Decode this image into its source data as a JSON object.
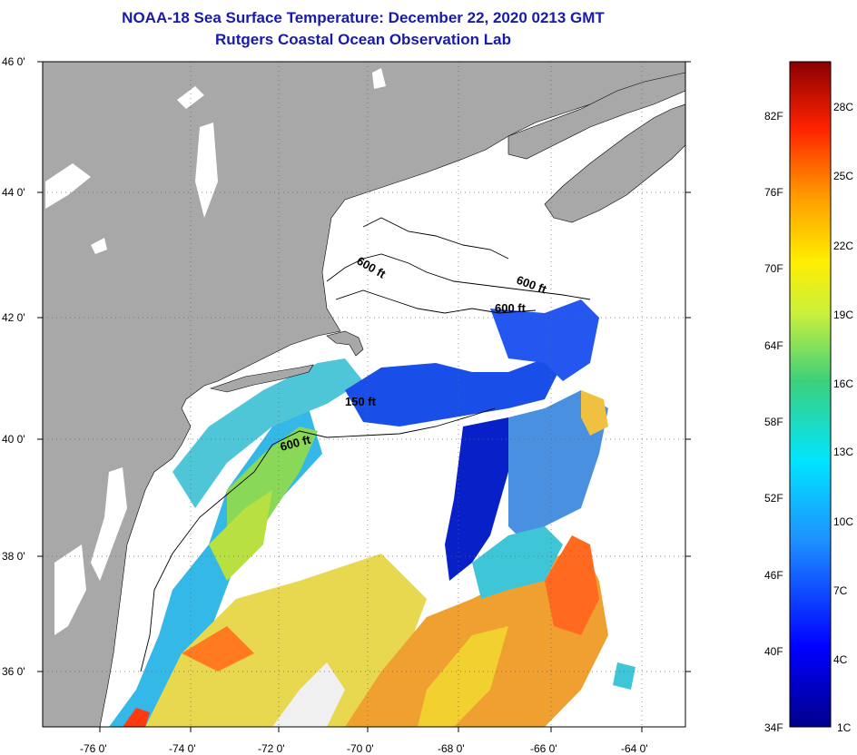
{
  "title": "NOAA-18 Sea Surface Temperature:  December 22, 2020 0213 GMT",
  "subtitle": "Rutgers Coastal Ocean Observation Lab",
  "lat_ticks": [
    "46 0'",
    "44 0'",
    "42 0'",
    "40 0'",
    "38 0'",
    "36 0'"
  ],
  "lon_ticks": [
    "-76 0'",
    "-74 0'",
    "-72 0'",
    "-70 0'",
    "-68 0'",
    "-66 0'",
    "-64 0'"
  ],
  "contours": [
    "600 ft",
    "600 ft",
    "600 ft",
    "150 ft",
    "600 ft"
  ],
  "colorbar": {
    "fahrenheit": [
      "82F",
      "76F",
      "70F",
      "64F",
      "58F",
      "52F",
      "46F",
      "40F",
      "34F"
    ],
    "celsius": [
      "28C",
      "25C",
      "22C",
      "19C",
      "16C",
      "13C",
      "10C",
      "7C",
      "4C",
      "1C"
    ]
  },
  "colors": {
    "title": "#1a1aa8",
    "land": "#a8a8a8",
    "grid": "#555555"
  }
}
